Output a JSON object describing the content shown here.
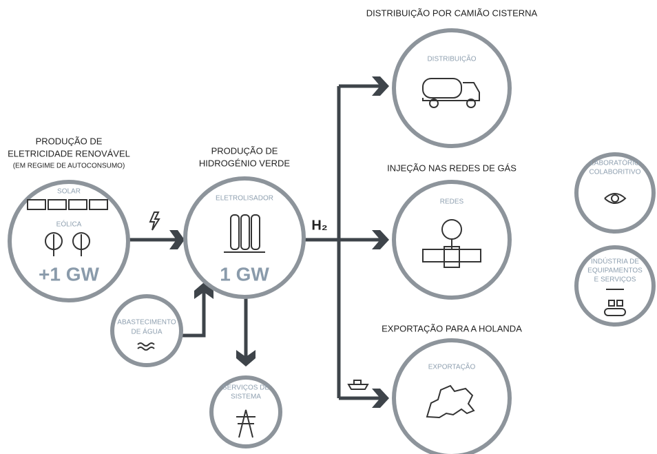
{
  "renewable": {
    "heading": [
      "PRODUÇÃO DE",
      "ELETRICIDADE RENOVÁVEL",
      "(EM REGIME DE AUTOCONSUMO)"
    ],
    "labels": [
      "SOLAR",
      "EÓLICA"
    ],
    "capacity": "+1 GW"
  },
  "hydrogen": {
    "heading": [
      "PRODUÇÃO DE",
      "HIDROGÉNIO VERDE"
    ],
    "label": "ELETROLISADOR",
    "capacity": "1 GW",
    "output": "H₂"
  },
  "water": {
    "label": [
      "ABASTECIMENTO",
      "DE ÁGUA"
    ]
  },
  "services": {
    "label": [
      "SERVIÇOS DE",
      "SISTEMA"
    ]
  },
  "distribution": {
    "heading": "DISTRIBUIÇÃO POR CAMIÃO CISTERNA",
    "label": "DISTRIBUIÇÃO"
  },
  "gas_grid": {
    "heading": "INJEÇÃO NAS REDES DE GÁS",
    "label": "REDES"
  },
  "export": {
    "heading": "EXPORTAÇÃO PARA A HOLANDA",
    "label": "EXPORTAÇÃO"
  },
  "lab": {
    "label": [
      "LABORATÓRIO",
      "COLABORITIVO"
    ]
  },
  "industry": {
    "label": [
      "INDÚSTRIA DE",
      "EQUIPAMENTOS",
      "E SERVIÇOS"
    ]
  }
}
